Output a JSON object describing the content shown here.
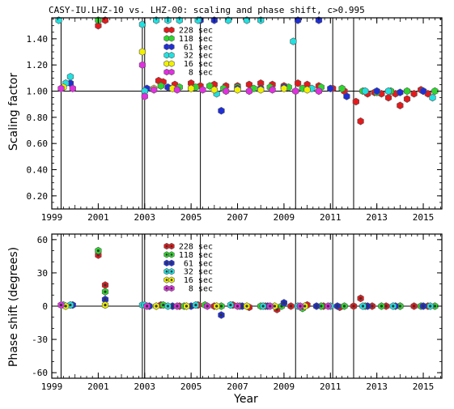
{
  "chart_data": [
    {
      "type": "scatter",
      "title": "CASY-IU.LHZ-10 vs. LHZ-00: scaling and phase shift, c>0.995",
      "xlabel": "",
      "ylabel": "Scaling factor",
      "xlim": [
        1999.0,
        2015.8
      ],
      "ylim": [
        0.1,
        1.56
      ],
      "xticks": [
        "1999",
        "2001",
        "2003",
        "2005",
        "2007",
        "2009",
        "2011",
        "2013",
        "2015"
      ],
      "yticks": [
        "0.20",
        "0.40",
        "0.60",
        "0.80",
        "1.00",
        "1.20",
        "1.40"
      ],
      "reference_line": 1.0,
      "event_lines": [
        1999.4,
        2002.9,
        2003.0,
        2005.4,
        2009.5,
        2011.1,
        2012.0
      ],
      "legend_position": "top-center",
      "series": [
        {
          "name": "228 sec",
          "color": "#e31a1c",
          "points": [
            [
              2001.0,
              1.5
            ],
            [
              2001.3,
              1.55
            ],
            [
              2003.6,
              1.08
            ],
            [
              2003.8,
              1.07
            ],
            [
              2004.3,
              1.05
            ],
            [
              2005.0,
              1.06
            ],
            [
              2005.4,
              1.04
            ],
            [
              2006.0,
              1.05
            ],
            [
              2006.5,
              1.04
            ],
            [
              2007.0,
              1.04
            ],
            [
              2007.5,
              1.05
            ],
            [
              2008.0,
              1.06
            ],
            [
              2008.5,
              1.05
            ],
            [
              2009.0,
              1.04
            ],
            [
              2009.6,
              1.06
            ],
            [
              2010.0,
              1.05
            ],
            [
              2010.5,
              1.04
            ],
            [
              2011.1,
              1.02
            ],
            [
              2011.6,
              1.0
            ],
            [
              2012.1,
              0.92
            ],
            [
              2012.3,
              0.77
            ],
            [
              2012.6,
              0.98
            ],
            [
              2012.9,
              0.99
            ],
            [
              2013.2,
              0.98
            ],
            [
              2013.5,
              0.95
            ],
            [
              2013.8,
              0.98
            ],
            [
              2014.0,
              0.89
            ],
            [
              2014.3,
              0.94
            ],
            [
              2014.6,
              0.98
            ],
            [
              2014.9,
              1.01
            ],
            [
              2015.2,
              0.98
            ]
          ]
        },
        {
          "name": "118 sec",
          "color": "#2ed62e",
          "points": [
            [
              2001.0,
              1.55
            ],
            [
              2003.7,
              1.04
            ],
            [
              2004.5,
              1.03
            ],
            [
              2005.2,
              1.03
            ],
            [
              2005.8,
              1.04
            ],
            [
              2006.4,
              1.02
            ],
            [
              2007.0,
              1.03
            ],
            [
              2007.7,
              1.02
            ],
            [
              2008.4,
              1.03
            ],
            [
              2009.2,
              1.03
            ],
            [
              2009.8,
              1.02
            ],
            [
              2010.6,
              1.03
            ],
            [
              2011.5,
              1.02
            ],
            [
              2012.4,
              1.0
            ],
            [
              2013.0,
              0.99
            ],
            [
              2013.6,
              1.0
            ],
            [
              2014.3,
              1.0
            ],
            [
              2015.0,
              1.0
            ],
            [
              2015.5,
              1.0
            ]
          ]
        },
        {
          "name": "61 sec",
          "color": "#1f2fd6",
          "points": [
            [
              1999.8,
              1.06
            ],
            [
              2003.1,
              1.02
            ],
            [
              2004.0,
              1.03
            ],
            [
              2005.4,
              1.55
            ],
            [
              2006.0,
              1.55
            ],
            [
              2006.3,
              0.85
            ],
            [
              2007.0,
              1.02
            ],
            [
              2008.0,
              1.02
            ],
            [
              2009.0,
              1.03
            ],
            [
              2009.6,
              1.55
            ],
            [
              2010.5,
              1.55
            ],
            [
              2011.0,
              1.02
            ],
            [
              2011.7,
              0.96
            ],
            [
              2013.0,
              1.0
            ],
            [
              2014.0,
              0.99
            ],
            [
              2015.0,
              1.0
            ]
          ]
        },
        {
          "name": "32 sec",
          "color": "#22e0e0",
          "points": [
            [
              1999.3,
              1.55
            ],
            [
              1999.6,
              1.06
            ],
            [
              1999.8,
              1.11
            ],
            [
              2002.9,
              1.51
            ],
            [
              2003.0,
              1.0
            ],
            [
              2003.5,
              1.55
            ],
            [
              2004.0,
              1.55
            ],
            [
              2004.5,
              1.55
            ],
            [
              2005.3,
              1.55
            ],
            [
              2006.6,
              1.55
            ],
            [
              2006.1,
              0.98
            ],
            [
              2007.4,
              1.55
            ],
            [
              2008.0,
              1.55
            ],
            [
              2009.4,
              1.38
            ],
            [
              2010.2,
              1.02
            ],
            [
              2012.5,
              1.0
            ],
            [
              2013.5,
              1.0
            ],
            [
              2015.4,
              0.95
            ]
          ]
        },
        {
          "name": "16 sec",
          "color": "#f0f000",
          "points": [
            [
              1999.5,
              1.03
            ],
            [
              2002.9,
              1.3
            ],
            [
              2003.4,
              1.02
            ],
            [
              2004.2,
              1.02
            ],
            [
              2005.0,
              1.02
            ],
            [
              2006.0,
              1.01
            ],
            [
              2007.0,
              1.01
            ],
            [
              2008.0,
              1.01
            ],
            [
              2009.0,
              1.02
            ],
            [
              2010.0,
              1.01
            ]
          ]
        },
        {
          "name": "8 sec",
          "color": "#e030e0",
          "points": [
            [
              1999.4,
              1.02
            ],
            [
              1999.9,
              1.02
            ],
            [
              2002.9,
              1.2
            ],
            [
              2003.0,
              0.96
            ],
            [
              2003.4,
              1.01
            ],
            [
              2004.4,
              1.01
            ],
            [
              2005.5,
              1.01
            ],
            [
              2006.5,
              1.0
            ],
            [
              2007.5,
              1.0
            ],
            [
              2008.5,
              1.01
            ],
            [
              2009.5,
              1.0
            ],
            [
              2010.5,
              1.0
            ]
          ]
        }
      ]
    },
    {
      "type": "scatter",
      "title": "",
      "xlabel": "Year",
      "ylabel": "Phase shift (degrees)",
      "xlim": [
        1999.0,
        2015.8
      ],
      "ylim": [
        -65,
        65
      ],
      "xticks": [
        "1999",
        "2001",
        "2003",
        "2005",
        "2007",
        "2009",
        "2011",
        "2013",
        "2015"
      ],
      "yticks": [
        "-60",
        "-30",
        "0",
        "30",
        "60"
      ],
      "reference_line": 0,
      "event_lines": [
        1999.4,
        2002.9,
        2003.0,
        2005.4,
        2009.5,
        2011.1,
        2012.0
      ],
      "legend_position": "top-center",
      "series": [
        {
          "name": "228 sec",
          "color": "#e31a1c",
          "points": [
            [
              2001.0,
              46
            ],
            [
              2001.3,
              19
            ],
            [
              2003.7,
              1
            ],
            [
              2004.5,
              0
            ],
            [
              2005.3,
              1
            ],
            [
              2006.0,
              0
            ],
            [
              2006.8,
              1
            ],
            [
              2007.5,
              -1
            ],
            [
              2008.2,
              0
            ],
            [
              2008.7,
              -3
            ],
            [
              2009.3,
              0
            ],
            [
              2010.0,
              1
            ],
            [
              2010.7,
              0
            ],
            [
              2011.4,
              -1
            ],
            [
              2012.0,
              0
            ],
            [
              2012.3,
              7
            ],
            [
              2012.8,
              0
            ],
            [
              2013.4,
              0
            ],
            [
              2014.0,
              0
            ],
            [
              2014.6,
              0
            ],
            [
              2015.2,
              0
            ]
          ]
        },
        {
          "name": "118 sec",
          "color": "#2ed62e",
          "points": [
            [
              2001.0,
              50
            ],
            [
              2001.3,
              13
            ],
            [
              2003.8,
              1
            ],
            [
              2004.7,
              0
            ],
            [
              2005.6,
              1
            ],
            [
              2006.3,
              0
            ],
            [
              2007.1,
              0
            ],
            [
              2008.0,
              0
            ],
            [
              2008.9,
              0
            ],
            [
              2009.8,
              -2
            ],
            [
              2010.6,
              0
            ],
            [
              2011.6,
              0
            ],
            [
              2012.5,
              0
            ],
            [
              2013.2,
              0
            ],
            [
              2014.0,
              0
            ],
            [
              2014.9,
              0
            ],
            [
              2015.5,
              0
            ]
          ]
        },
        {
          "name": "61 sec",
          "color": "#1f2fd6",
          "points": [
            [
              1999.9,
              1
            ],
            [
              2001.3,
              6
            ],
            [
              2003.2,
              0
            ],
            [
              2004.2,
              0
            ],
            [
              2005.0,
              0
            ],
            [
              2006.3,
              -8
            ],
            [
              2007.2,
              0
            ],
            [
              2008.3,
              0
            ],
            [
              2009.0,
              3
            ],
            [
              2010.4,
              0
            ],
            [
              2011.3,
              0
            ],
            [
              2012.6,
              0
            ],
            [
              2013.8,
              0
            ],
            [
              2015.0,
              0
            ]
          ]
        },
        {
          "name": "32 sec",
          "color": "#22e0e0",
          "points": [
            [
              1999.5,
              1
            ],
            [
              1999.8,
              1
            ],
            [
              2002.9,
              1
            ],
            [
              2003.0,
              1
            ],
            [
              2004.0,
              0
            ],
            [
              2005.2,
              1
            ],
            [
              2006.7,
              1
            ],
            [
              2008.1,
              0
            ],
            [
              2009.6,
              0
            ],
            [
              2011.0,
              0
            ],
            [
              2012.4,
              0
            ],
            [
              2013.7,
              0
            ],
            [
              2015.3,
              0
            ]
          ]
        },
        {
          "name": "16 sec",
          "color": "#f0f000",
          "points": [
            [
              1999.6,
              0
            ],
            [
              2001.3,
              1
            ],
            [
              2003.5,
              0
            ],
            [
              2004.8,
              0
            ],
            [
              2006.1,
              0
            ],
            [
              2007.4,
              0
            ],
            [
              2008.6,
              0
            ],
            [
              2009.9,
              0
            ]
          ]
        },
        {
          "name": "8 sec",
          "color": "#e030e0",
          "points": [
            [
              1999.4,
              1
            ],
            [
              2003.1,
              0
            ],
            [
              2004.4,
              0
            ],
            [
              2005.7,
              0
            ],
            [
              2007.0,
              0
            ],
            [
              2008.4,
              0
            ],
            [
              2009.7,
              0
            ],
            [
              2010.9,
              0
            ]
          ]
        }
      ]
    }
  ]
}
